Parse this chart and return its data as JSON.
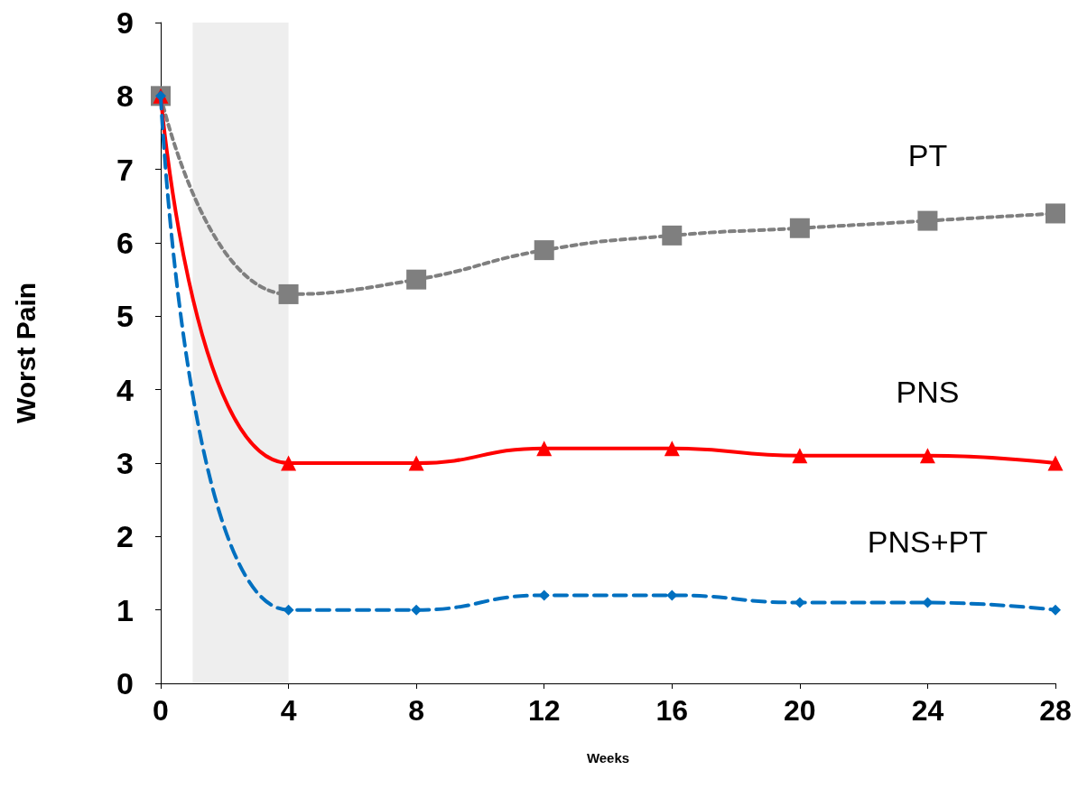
{
  "chart_data": {
    "type": "line",
    "xlabel": "Weeks",
    "ylabel": "Worst Pain",
    "x": [
      0,
      4,
      8,
      12,
      16,
      20,
      24,
      28
    ],
    "series": [
      {
        "name": "PT",
        "color": "#7f7f7f",
        "marker": "square",
        "line_style": "dotted",
        "values": [
          8,
          5.3,
          5.5,
          5.9,
          6.1,
          6.2,
          6.3,
          6.4
        ]
      },
      {
        "name": "PNS",
        "color": "#ff0000",
        "marker": "triangle",
        "line_style": "solid",
        "values": [
          8,
          3,
          3,
          3.2,
          3.2,
          3.1,
          3.1,
          3
        ]
      },
      {
        "name": "PNS+PT",
        "color": "#0070c0",
        "marker": "diamond",
        "line_style": "dashed",
        "values": [
          8,
          1,
          1,
          1.2,
          1.2,
          1.1,
          1.1,
          1
        ]
      }
    ],
    "xlim": [
      0,
      28
    ],
    "xticks": [
      0,
      4,
      8,
      12,
      16,
      20,
      24,
      28
    ],
    "ylim": [
      0,
      9
    ],
    "yticks": [
      0,
      1,
      2,
      3,
      4,
      5,
      6,
      7,
      8,
      9
    ],
    "bands": [
      {
        "axis": "x",
        "from": 1,
        "to": 4,
        "color": "#eeeeee"
      }
    ],
    "grid": false,
    "legend": false
  }
}
